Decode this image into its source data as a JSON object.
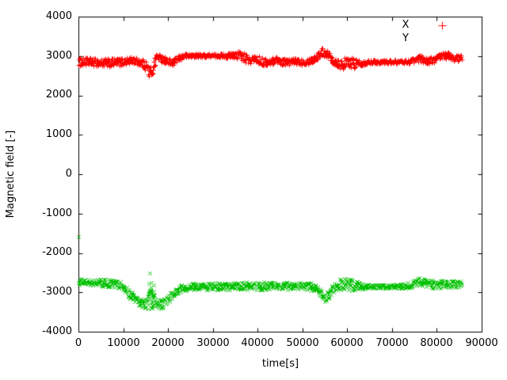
{
  "chart_data": {
    "type": "scatter",
    "title": "",
    "xlabel": "time[s]",
    "ylabel": "Magnetic field [-]",
    "xlim": [
      0,
      90000
    ],
    "ylim": [
      -4000,
      4000
    ],
    "grid": false,
    "xticks": [
      0,
      10000,
      20000,
      30000,
      40000,
      50000,
      60000,
      70000,
      80000,
      90000
    ],
    "yticks": [
      4000,
      3000,
      2000,
      1000,
      0,
      -1000,
      -2000,
      -3000,
      -4000
    ],
    "sample_step_s": 90,
    "legend": {
      "position": "top-right",
      "entries": [
        {
          "label": "X",
          "marker": "plus",
          "color": "#ff0000",
          "marker_visible": true
        },
        {
          "label": "Y",
          "marker": "cross",
          "color": "#00c000",
          "marker_visible": false
        }
      ]
    },
    "series": [
      {
        "name": "X",
        "color": "#ff0000",
        "marker": "plus",
        "t_start": 0,
        "t_end": 85500,
        "approx_level": 2850,
        "control_points": [
          [
            0,
            2850,
            100
          ],
          [
            2000,
            2860,
            95
          ],
          [
            4000,
            2845,
            100
          ],
          [
            6000,
            2820,
            110
          ],
          [
            8000,
            2840,
            105
          ],
          [
            10000,
            2860,
            95
          ],
          [
            12000,
            2890,
            85
          ],
          [
            13500,
            2860,
            95
          ],
          [
            15000,
            2780,
            130
          ],
          [
            15800,
            2560,
            180
          ],
          [
            16600,
            2680,
            170
          ],
          [
            17400,
            3000,
            85
          ],
          [
            18500,
            2940,
            80
          ],
          [
            20000,
            2860,
            85
          ],
          [
            21000,
            2810,
            85
          ],
          [
            22000,
            2920,
            75
          ],
          [
            23500,
            3010,
            55
          ],
          [
            26000,
            3015,
            40
          ],
          [
            29000,
            3015,
            40
          ],
          [
            32000,
            3015,
            45
          ],
          [
            33800,
            3010,
            70
          ],
          [
            35200,
            3040,
            110
          ],
          [
            36500,
            3000,
            115
          ],
          [
            38000,
            2890,
            100
          ],
          [
            39500,
            2930,
            90
          ],
          [
            41000,
            2860,
            95
          ],
          [
            42500,
            2830,
            90
          ],
          [
            44000,
            2920,
            80
          ],
          [
            45500,
            2860,
            85
          ],
          [
            47000,
            2850,
            85
          ],
          [
            48500,
            2870,
            80
          ],
          [
            50000,
            2855,
            80
          ],
          [
            51500,
            2875,
            80
          ],
          [
            53000,
            2960,
            90
          ],
          [
            54500,
            3120,
            100
          ],
          [
            55500,
            3060,
            100
          ],
          [
            57000,
            2880,
            110
          ],
          [
            58500,
            2800,
            130
          ],
          [
            60000,
            2820,
            145
          ],
          [
            61500,
            2830,
            135
          ],
          [
            63000,
            2830,
            80
          ],
          [
            65000,
            2855,
            45
          ],
          [
            68000,
            2855,
            40
          ],
          [
            71000,
            2855,
            40
          ],
          [
            73500,
            2860,
            50
          ],
          [
            75000,
            2890,
            65
          ],
          [
            76300,
            2950,
            85
          ],
          [
            77800,
            2880,
            75
          ],
          [
            79500,
            2910,
            80
          ],
          [
            81200,
            3010,
            95
          ],
          [
            82200,
            3030,
            95
          ],
          [
            83200,
            2970,
            85
          ],
          [
            84200,
            2950,
            85
          ],
          [
            85500,
            2960,
            75
          ]
        ],
        "outliers": []
      },
      {
        "name": "Y",
        "color": "#00c000",
        "marker": "cross",
        "t_start": 0,
        "t_end": 85500,
        "approx_level": -2800,
        "control_points": [
          [
            0,
            -2740,
            85
          ],
          [
            2500,
            -2745,
            85
          ],
          [
            5000,
            -2755,
            90
          ],
          [
            7500,
            -2770,
            95
          ],
          [
            9500,
            -2810,
            100
          ],
          [
            11000,
            -3000,
            110
          ],
          [
            12500,
            -3150,
            115
          ],
          [
            14000,
            -3250,
            115
          ],
          [
            15200,
            -3300,
            120
          ],
          [
            15900,
            -2920,
            510
          ],
          [
            16500,
            -2970,
            460
          ],
          [
            17200,
            -3240,
            140
          ],
          [
            18200,
            -3300,
            125
          ],
          [
            19200,
            -3270,
            115
          ],
          [
            20200,
            -3140,
            105
          ],
          [
            21500,
            -3010,
            95
          ],
          [
            23000,
            -2900,
            85
          ],
          [
            25000,
            -2850,
            80
          ],
          [
            27500,
            -2845,
            80
          ],
          [
            30000,
            -2855,
            95
          ],
          [
            32500,
            -2845,
            85
          ],
          [
            35000,
            -2840,
            90
          ],
          [
            37500,
            -2835,
            100
          ],
          [
            40000,
            -2840,
            105
          ],
          [
            42500,
            -2840,
            95
          ],
          [
            45000,
            -2835,
            95
          ],
          [
            47500,
            -2840,
            90
          ],
          [
            50000,
            -2840,
            95
          ],
          [
            52000,
            -2855,
            100
          ],
          [
            53800,
            -2990,
            105
          ],
          [
            55000,
            -3150,
            110
          ],
          [
            56200,
            -3000,
            105
          ],
          [
            57300,
            -2820,
            130
          ],
          [
            58500,
            -2790,
            155
          ],
          [
            60000,
            -2800,
            160
          ],
          [
            61500,
            -2810,
            145
          ],
          [
            63000,
            -2840,
            90
          ],
          [
            65000,
            -2845,
            55
          ],
          [
            67500,
            -2845,
            50
          ],
          [
            70000,
            -2845,
            50
          ],
          [
            72500,
            -2845,
            60
          ],
          [
            74500,
            -2800,
            80
          ],
          [
            76000,
            -2720,
            100
          ],
          [
            77500,
            -2765,
            95
          ],
          [
            79000,
            -2795,
            100
          ],
          [
            81000,
            -2785,
            105
          ],
          [
            83000,
            -2795,
            100
          ],
          [
            84500,
            -2800,
            95
          ],
          [
            85500,
            -2805,
            90
          ]
        ],
        "outliers": [
          [
            0,
            -1580
          ]
        ]
      }
    ]
  }
}
